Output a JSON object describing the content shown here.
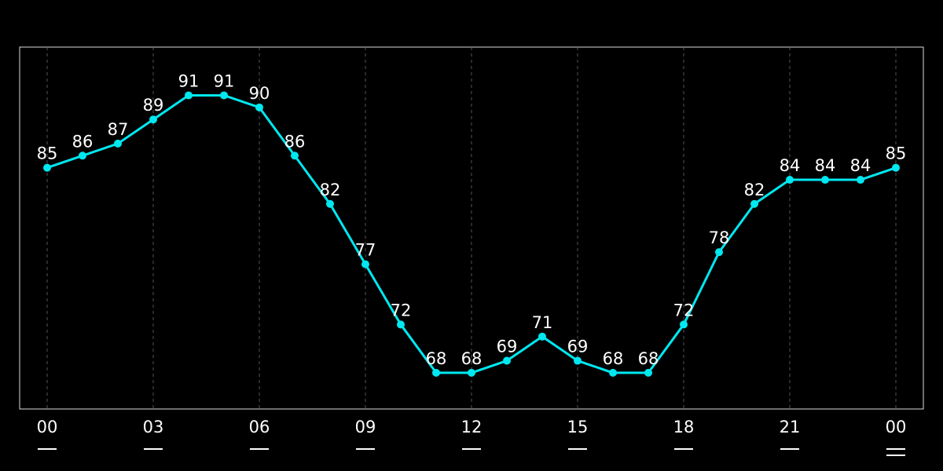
{
  "chart_data": {
    "type": "line",
    "categories": [
      "00",
      null,
      null,
      "03",
      null,
      null,
      "06",
      null,
      null,
      "09",
      null,
      null,
      "12",
      null,
      null,
      "15",
      null,
      null,
      "18",
      null,
      null,
      "21",
      null,
      null,
      "00"
    ],
    "series": [
      {
        "color": "#00e8f0",
        "values": [
          85,
          86,
          87,
          89,
          91,
          91,
          90,
          86,
          82,
          77,
          72,
          68,
          68,
          69,
          71,
          69,
          68,
          68,
          72,
          78,
          82,
          84,
          84,
          84,
          85
        ]
      }
    ],
    "ylim": [
      65,
      95
    ],
    "grid": true
  }
}
